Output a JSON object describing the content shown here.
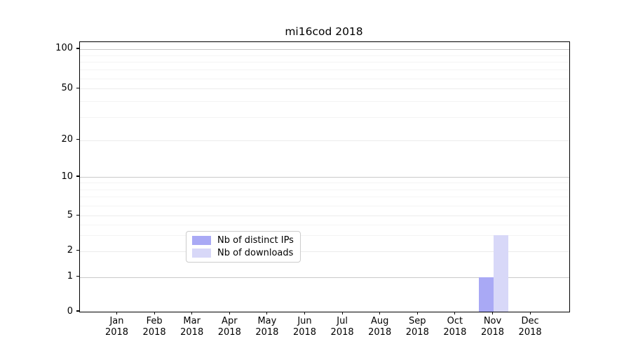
{
  "chart_data": {
    "type": "bar",
    "title": "mi16cod 2018",
    "categories": [
      "Jan 2018",
      "Feb 2018",
      "Mar 2018",
      "Apr 2018",
      "May 2018",
      "Jun 2018",
      "Jul 2018",
      "Aug 2018",
      "Sep 2018",
      "Oct 2018",
      "Nov 2018",
      "Dec 2018"
    ],
    "series": [
      {
        "name": "Nb of distinct IPs",
        "color": "#a9a9f5",
        "values": [
          0,
          0,
          0,
          0,
          0,
          0,
          0,
          0,
          0,
          0,
          1,
          0
        ]
      },
      {
        "name": "Nb of downloads",
        "color": "#d8d8f8",
        "values": [
          0,
          0,
          0,
          0,
          0,
          0,
          0,
          0,
          0,
          0,
          3,
          0
        ]
      }
    ],
    "xlabel": "",
    "ylabel": "",
    "yscale": "symlog",
    "yticks": [
      0,
      1,
      2,
      5,
      10,
      20,
      50,
      100
    ],
    "minor_ytick_lines": [
      3,
      4,
      6,
      7,
      8,
      9,
      30,
      40,
      60,
      70,
      80,
      90
    ],
    "ylim": [
      0,
      105
    ],
    "grid": "horizontal",
    "legend_position": "inside-bottom-center"
  },
  "colors": {
    "background": "#ffffff",
    "axis": "#000000",
    "major_grid": "#c9c9c9",
    "mid_grid": "#ebebeb",
    "minor_grid": "#f4f4f4",
    "legend_border": "#cccccc"
  }
}
